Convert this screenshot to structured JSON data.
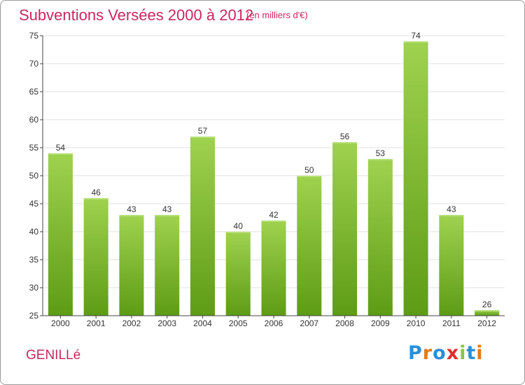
{
  "header": {
    "title": "Subventions Versées 2000 à 2012",
    "subtitle": "(en milliers d'€)"
  },
  "footer": {
    "town": "GENILLé",
    "brand": "Proxiti",
    "brand_colors": [
      "#2a8fd6",
      "#e07b1c",
      "#2a8fd6",
      "#e02d2d",
      "#8bc34a",
      "#2a8fd6",
      "#e07b1c"
    ]
  },
  "colors": {
    "title": "#c8285e",
    "bar_light": "#9fd24f",
    "bar_dark": "#5e9c15",
    "axis": "#444444",
    "grid": "#e2e2e2"
  },
  "chart_data": {
    "type": "bar",
    "title": "Subventions Versées 2000 à 2012",
    "subtitle": "(en milliers d'€)",
    "xlabel": "",
    "ylabel": "",
    "categories": [
      "2000",
      "2001",
      "2002",
      "2003",
      "2004",
      "2005",
      "2006",
      "2007",
      "2008",
      "2009",
      "2010",
      "2011",
      "2012"
    ],
    "values": [
      54,
      46,
      43,
      43,
      57,
      40,
      42,
      50,
      56,
      53,
      74,
      43,
      26
    ],
    "ylim": [
      25,
      75
    ],
    "yticks": [
      25,
      30,
      35,
      40,
      45,
      50,
      55,
      60,
      65,
      70,
      75
    ],
    "grid": true,
    "legend": "none"
  }
}
